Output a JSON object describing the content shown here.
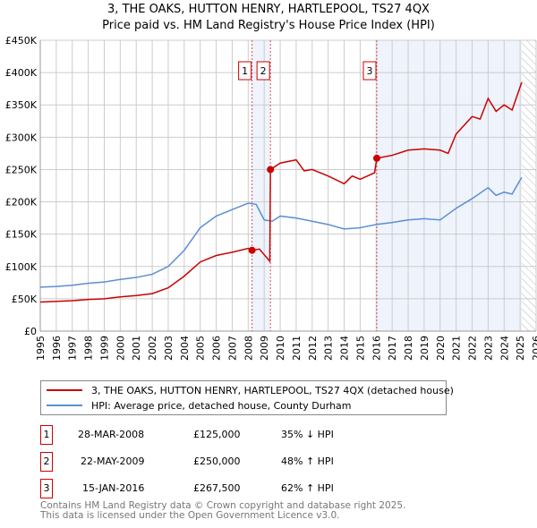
{
  "title": "3, THE OAKS, HUTTON HENRY, HARTLEPOOL, TS27 4QX",
  "subtitle": "Price paid vs. HM Land Registry's House Price Index (HPI)",
  "chart_data": {
    "type": "line",
    "title": "3, THE OAKS, HUTTON HENRY, HARTLEPOOL, TS27 4QX",
    "subtitle": "Price paid vs. HM Land Registry's House Price Index (HPI)",
    "xlim": [
      1995,
      2026
    ],
    "ylim": [
      0,
      450000
    ],
    "x_ticks": [
      "1995",
      "1996",
      "1997",
      "1998",
      "1999",
      "2000",
      "2001",
      "2002",
      "2003",
      "2004",
      "2005",
      "2006",
      "2007",
      "2008",
      "2009",
      "2010",
      "2011",
      "2012",
      "2013",
      "2014",
      "2015",
      "2016",
      "2017",
      "2018",
      "2019",
      "2020",
      "2021",
      "2022",
      "2023",
      "2024",
      "2025",
      "2026"
    ],
    "y_ticks": [
      {
        "v": 0,
        "label": "£0"
      },
      {
        "v": 50000,
        "label": "£50K"
      },
      {
        "v": 100000,
        "label": "£100K"
      },
      {
        "v": 150000,
        "label": "£150K"
      },
      {
        "v": 200000,
        "label": "£200K"
      },
      {
        "v": 250000,
        "label": "£250K"
      },
      {
        "v": 300000,
        "label": "£300K"
      },
      {
        "v": 350000,
        "label": "£350K"
      },
      {
        "v": 400000,
        "label": "£400K"
      },
      {
        "v": 450000,
        "label": "£450K"
      }
    ],
    "grid": true,
    "shaded_ranges": [
      [
        2008.24,
        2009.39
      ],
      [
        2016.04,
        2025.1
      ]
    ],
    "hatched_from": 2025.1,
    "series": [
      {
        "name": "3, THE OAKS, HUTTON HENRY, HARTLEPOOL, TS27 4QX (detached house)",
        "color": "#cc0000",
        "x": [
          1995,
          1996,
          1997,
          1998,
          1999,
          2000,
          2001,
          2002,
          2003,
          2004,
          2005,
          2006,
          2007,
          2008,
          2008.24,
          2008.7,
          2009.35,
          2009.39,
          2010,
          2011,
          2011.5,
          2012,
          2013,
          2014,
          2014.5,
          2015,
          2015.9,
          2016.04,
          2017,
          2018,
          2019,
          2020,
          2020.5,
          2021,
          2022,
          2022.5,
          2023,
          2023.5,
          2024,
          2024.5,
          2025.1
        ],
        "y": [
          45000,
          46000,
          47000,
          49000,
          50000,
          53000,
          55000,
          58000,
          67000,
          85000,
          107000,
          117000,
          122000,
          128000,
          125000,
          127000,
          108000,
          250000,
          260000,
          265000,
          248000,
          250000,
          240000,
          228000,
          240000,
          235000,
          245000,
          267500,
          272000,
          280000,
          282000,
          280000,
          275000,
          305000,
          332000,
          328000,
          360000,
          340000,
          350000,
          342000,
          385000
        ]
      },
      {
        "name": "HPI: Average price, detached house, County Durham",
        "color": "#5b8fd0",
        "x": [
          1995,
          1996,
          1997,
          1998,
          1999,
          2000,
          2001,
          2002,
          2003,
          2004,
          2005,
          2006,
          2007,
          2008,
          2008.5,
          2009,
          2009.5,
          2010,
          2011,
          2012,
          2013,
          2014,
          2015,
          2016,
          2017,
          2018,
          2019,
          2020,
          2021,
          2022,
          2023,
          2023.5,
          2024,
          2024.5,
          2025.1
        ],
        "y": [
          68000,
          69000,
          71000,
          74000,
          76000,
          80000,
          83000,
          88000,
          100000,
          125000,
          160000,
          178000,
          188000,
          198000,
          196000,
          172000,
          170000,
          178000,
          175000,
          170000,
          165000,
          158000,
          160000,
          165000,
          168000,
          172000,
          174000,
          172000,
          190000,
          205000,
          222000,
          210000,
          215000,
          212000,
          238000
        ]
      }
    ],
    "markers": [
      {
        "label": "1",
        "x": 2008.24,
        "y": 125000
      },
      {
        "label": "2",
        "x": 2009.39,
        "y": 250000
      },
      {
        "label": "3",
        "x": 2016.04,
        "y": 267500
      }
    ]
  },
  "legend": {
    "red": "3, THE OAKS, HUTTON HENRY, HARTLEPOOL, TS27 4QX (detached house)",
    "blue": "HPI: Average price, detached house, County Durham"
  },
  "transactions": [
    {
      "num": "1",
      "date": "28-MAR-2008",
      "price": "£125,000",
      "hpi": "35% ↓ HPI"
    },
    {
      "num": "2",
      "date": "22-MAY-2009",
      "price": "£250,000",
      "hpi": "48% ↑ HPI"
    },
    {
      "num": "3",
      "date": "15-JAN-2016",
      "price": "£267,500",
      "hpi": "62% ↑ HPI"
    }
  ],
  "footer": {
    "line1": "Contains HM Land Registry data © Crown copyright and database right 2025.",
    "line2": "This data is licensed under the Open Government Licence v3.0."
  }
}
